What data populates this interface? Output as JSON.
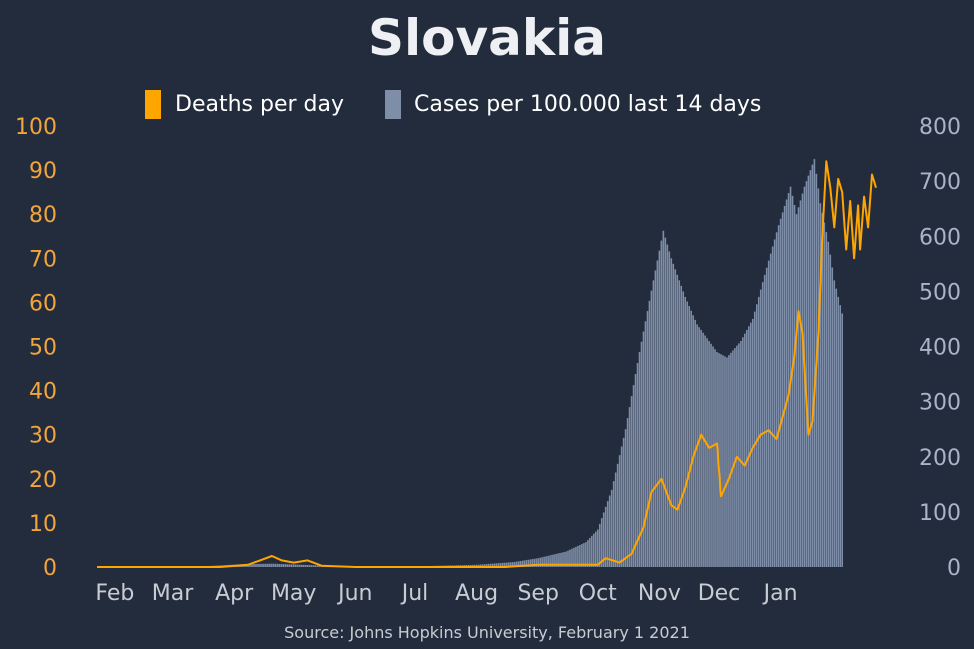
{
  "chart_data": {
    "type": "bar+line",
    "title": "Slovakia",
    "source": "Source: Johns Hopkins University, February 1 2021",
    "legend": [
      {
        "label": "Deaths per day",
        "color": "#ffa500"
      },
      {
        "label": "Cases per 100.000 last 14 days",
        "color": "#7f8ea8"
      }
    ],
    "x_ticks": [
      "Feb",
      "Mar",
      "Apr",
      "May",
      "Jun",
      "Jul",
      "Aug",
      "Sep",
      "Oct",
      "Nov",
      "Dec",
      "Jan"
    ],
    "y_left": {
      "ticks": [
        "0",
        "10",
        "20",
        "30",
        "40",
        "50",
        "60",
        "70",
        "80",
        "90",
        "100"
      ],
      "ylim": [
        0,
        100
      ],
      "color": "#f2a53a"
    },
    "y_right": {
      "ticks": [
        "0",
        "100",
        "200",
        "300",
        "400",
        "500",
        "600",
        "700",
        "800"
      ],
      "ylim": [
        0,
        800
      ],
      "color": "#aab4c6"
    },
    "series": [
      {
        "name": "Cases per 100.000 last 14 days",
        "axis": "right",
        "type": "bar",
        "points": [
          [
            "2020-01-23",
            0
          ],
          [
            "2020-03-01",
            0
          ],
          [
            "2020-03-20",
            2
          ],
          [
            "2020-04-05",
            5
          ],
          [
            "2020-04-20",
            6
          ],
          [
            "2020-05-05",
            4
          ],
          [
            "2020-05-20",
            2
          ],
          [
            "2020-06-15",
            1
          ],
          [
            "2020-07-10",
            2
          ],
          [
            "2020-08-01",
            4
          ],
          [
            "2020-08-20",
            9
          ],
          [
            "2020-09-01",
            16
          ],
          [
            "2020-09-15",
            28
          ],
          [
            "2020-09-25",
            45
          ],
          [
            "2020-10-01",
            68
          ],
          [
            "2020-10-08",
            140
          ],
          [
            "2020-10-15",
            250
          ],
          [
            "2020-10-22",
            390
          ],
          [
            "2020-10-29",
            520
          ],
          [
            "2020-11-03",
            610
          ],
          [
            "2020-11-07",
            560
          ],
          [
            "2020-11-14",
            490
          ],
          [
            "2020-11-20",
            440
          ],
          [
            "2020-11-30",
            390
          ],
          [
            "2020-12-05",
            380
          ],
          [
            "2020-12-12",
            410
          ],
          [
            "2020-12-18",
            450
          ],
          [
            "2020-12-24",
            530
          ],
          [
            "2020-12-31",
            620
          ],
          [
            "2021-01-06",
            690
          ],
          [
            "2021-01-09",
            640
          ],
          [
            "2021-01-13",
            690
          ],
          [
            "2021-01-18",
            740
          ],
          [
            "2021-01-21",
            660
          ],
          [
            "2021-01-25",
            590
          ],
          [
            "2021-01-28",
            520
          ],
          [
            "2021-02-01",
            460
          ]
        ]
      },
      {
        "name": "Deaths per day",
        "axis": "left",
        "type": "line",
        "points": [
          [
            "2020-01-23",
            0
          ],
          [
            "2020-03-25",
            0
          ],
          [
            "2020-04-08",
            0.5
          ],
          [
            "2020-04-14",
            1.5
          ],
          [
            "2020-04-20",
            2.5
          ],
          [
            "2020-04-25",
            1.5
          ],
          [
            "2020-05-01",
            1
          ],
          [
            "2020-05-08",
            1.5
          ],
          [
            "2020-05-15",
            0.3
          ],
          [
            "2020-06-01",
            0
          ],
          [
            "2020-08-15",
            0
          ],
          [
            "2020-09-01",
            0.5
          ],
          [
            "2020-09-15",
            0.5
          ],
          [
            "2020-10-01",
            0.5
          ],
          [
            "2020-10-05",
            2
          ],
          [
            "2020-10-12",
            1
          ],
          [
            "2020-10-18",
            3
          ],
          [
            "2020-10-24",
            9
          ],
          [
            "2020-10-28",
            17
          ],
          [
            "2020-11-02",
            20
          ],
          [
            "2020-11-07",
            14
          ],
          [
            "2020-11-10",
            13
          ],
          [
            "2020-11-14",
            18
          ],
          [
            "2020-11-18",
            25
          ],
          [
            "2020-11-22",
            30
          ],
          [
            "2020-11-26",
            27
          ],
          [
            "2020-11-30",
            28
          ],
          [
            "2020-12-02",
            16
          ],
          [
            "2020-12-06",
            20
          ],
          [
            "2020-12-10",
            25
          ],
          [
            "2020-12-14",
            23
          ],
          [
            "2020-12-18",
            27
          ],
          [
            "2020-12-22",
            30
          ],
          [
            "2020-12-26",
            31
          ],
          [
            "2020-12-30",
            29
          ],
          [
            "2021-01-02",
            34
          ],
          [
            "2021-01-05",
            39
          ],
          [
            "2021-01-08",
            48
          ],
          [
            "2021-01-10",
            58
          ],
          [
            "2021-01-12",
            53
          ],
          [
            "2021-01-15",
            30
          ],
          [
            "2021-01-17",
            33
          ],
          [
            "2021-01-20",
            53
          ],
          [
            "2021-01-22",
            75
          ],
          [
            "2021-01-24",
            92
          ],
          [
            "2021-01-26",
            86
          ],
          [
            "2021-01-28",
            77
          ],
          [
            "2021-01-30",
            88
          ],
          [
            "2021-02-01",
            85
          ],
          [
            "2021-02-03",
            72
          ],
          [
            "2021-02-05",
            83
          ],
          [
            "2021-02-07",
            70
          ],
          [
            "2021-02-09",
            82
          ],
          [
            "2021-02-10",
            72
          ],
          [
            "2021-02-12",
            84
          ],
          [
            "2021-02-14",
            77
          ],
          [
            "2021-02-16",
            89
          ],
          [
            "2021-02-18",
            86
          ]
        ]
      }
    ]
  }
}
